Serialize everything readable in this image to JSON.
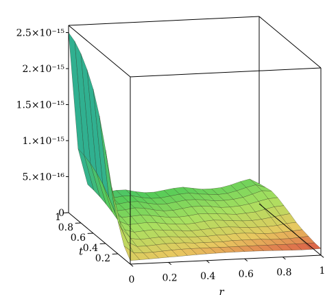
{
  "chart_data": {
    "type": "surface3d",
    "title": "",
    "xlabel": "r",
    "ylabel": "t",
    "zlabel": "",
    "x_ticks": [
      "0",
      "0.2",
      "0.4",
      "0.6",
      "0.8",
      "1"
    ],
    "y_ticks": [
      "0.2",
      "0.4",
      "0.6",
      "0.8",
      "1"
    ],
    "z_ticks": [
      {
        "value": 0,
        "label": "0"
      },
      {
        "value": 5e-16,
        "label": "5.×10⁻¹⁶"
      },
      {
        "value": 1e-15,
        "label": "1.×10⁻¹⁵"
      },
      {
        "value": 1.5e-15,
        "label": "1.5×10⁻¹⁵"
      },
      {
        "value": 2e-15,
        "label": "2.×10⁻¹⁵"
      },
      {
        "value": 2.5e-15,
        "label": "2.5×10⁻¹⁵"
      }
    ],
    "xlim": [
      0,
      1
    ],
    "ylim": [
      0,
      1
    ],
    "zlim": [
      0,
      2.6e-15
    ],
    "grid": false,
    "box": true,
    "colormap": [
      "#d94040",
      "#e8c860",
      "#a8e060",
      "#58cc58",
      "#30b090"
    ],
    "r_values": [
      0,
      0.05,
      0.1,
      0.15,
      0.2,
      0.25,
      0.3,
      0.35,
      0.4,
      0.45,
      0.5,
      0.55,
      0.6,
      0.65,
      0.7,
      0.75,
      0.8,
      0.85,
      0.9,
      0.95,
      1
    ],
    "t_values": [
      0,
      0.1,
      0.2,
      0.3,
      0.4,
      0.5,
      0.6,
      0.7,
      0.8,
      0.9,
      1
    ],
    "z_values": [
      [
        5e-17,
        5.4e-17,
        5.9e-17,
        6.5e-17,
        7.1e-17,
        7.6e-17,
        8.2e-17,
        8.8e-17,
        9.2e-17,
        9.6e-17,
        9.9e-17,
        1e-16,
        1e-16,
        1e-16,
        9.8e-17,
        9.5e-17,
        9.1e-17,
        8.8e-17,
        8.6e-17,
        8.7e-17,
        9.2e-17
      ],
      [
        1.8e-16,
        8e-17,
        7.2e-17,
        7.5e-17,
        8.4e-17,
        9.2e-17,
        9.8e-17,
        1e-16,
        1e-16,
        1e-16,
        9.9e-17,
        9.9e-17,
        1e-16,
        1e-16,
        1e-16,
        1e-16,
        9.9e-17,
        9.8e-17,
        9.7e-17,
        9.9e-17,
        1e-16
      ],
      [
        4.5e-16,
        1.6e-16,
        9e-17,
        9e-17,
        1e-16,
        1.1e-16,
        1.1e-16,
        1.1e-16,
        1e-16,
        1e-16,
        1e-16,
        1e-16,
        1.1e-16,
        1.1e-16,
        1.1e-16,
        1.1e-16,
        1e-16,
        1e-16,
        1e-16,
        1.1e-16,
        1.2e-16
      ],
      [
        8.5e-16,
        2.8e-16,
        1.3e-16,
        1.1e-16,
        1.2e-16,
        1.3e-16,
        1.3e-16,
        1.2e-16,
        1.1e-16,
        1.1e-16,
        1.1e-16,
        1.2e-16,
        1.2e-16,
        1.3e-16,
        1.3e-16,
        1.2e-16,
        1.1e-16,
        1.1e-16,
        1.2e-16,
        1.3e-16,
        1.4e-16
      ],
      [
        1.3e-15,
        4.2e-16,
        1.8e-16,
        1.4e-16,
        1.5e-16,
        1.6e-16,
        1.5e-16,
        1.4e-16,
        1.3e-16,
        1.2e-16,
        1.3e-16,
        1.4e-16,
        1.5e-16,
        1.5e-16,
        1.4e-16,
        1.3e-16,
        1.3e-16,
        1.3e-16,
        1.4e-16,
        1.6e-16,
        1.7e-16
      ],
      [
        1.7e-15,
        5.6e-16,
        2.3e-16,
        1.7e-16,
        1.8e-16,
        1.9e-16,
        1.8e-16,
        1.6e-16,
        1.5e-16,
        1.4e-16,
        1.5e-16,
        1.7e-16,
        1.8e-16,
        1.7e-16,
        1.6e-16,
        1.5e-16,
        1.5e-16,
        1.6e-16,
        1.8e-16,
        2e-16,
        2.2e-16
      ],
      [
        2e-15,
        6.8e-16,
        2.8e-16,
        2e-16,
        2.1e-16,
        2.2e-16,
        2.1e-16,
        1.9e-16,
        1.7e-16,
        1.7e-16,
        1.8e-16,
        2e-16,
        2e-16,
        1.9e-16,
        1.8e-16,
        1.7e-16,
        1.8e-16,
        1.9e-16,
        2.2e-16,
        2.5e-16,
        2.6e-16
      ],
      [
        2.2e-15,
        7.6e-16,
        3.2e-16,
        2.2e-16,
        2.3e-16,
        2.5e-16,
        2.4e-16,
        2.1e-16,
        1.9e-16,
        1.9e-16,
        2.1e-16,
        2.3e-16,
        2.3e-16,
        2.2e-16,
        2e-16,
        2e-16,
        2.1e-16,
        2.3e-16,
        2.6e-16,
        2.9e-16,
        3e-16
      ],
      [
        2.35e-15,
        8.2e-16,
        3.5e-16,
        2.4e-16,
        2.4e-16,
        2.6e-16,
        2.6e-16,
        2.3e-16,
        2.1e-16,
        2.1e-16,
        2.3e-16,
        2.5e-16,
        2.5e-16,
        2.4e-16,
        2.2e-16,
        2.2e-16,
        2.3e-16,
        2.5e-16,
        2.9e-16,
        3.3e-16,
        3.2e-16
      ],
      [
        2.45e-15,
        8.6e-16,
        3.7e-16,
        2.5e-16,
        2.5e-16,
        2.7e-16,
        2.7e-16,
        2.4e-16,
        2.2e-16,
        2.2e-16,
        2.4e-16,
        2.6e-16,
        2.7e-16,
        2.5e-16,
        2.4e-16,
        2.3e-16,
        2.4e-16,
        2.7e-16,
        3.1e-16,
        3.4e-16,
        3e-16
      ],
      [
        2.5e-15,
        8.8e-16,
        3.8e-16,
        2.6e-16,
        2.6e-16,
        2.8e-16,
        2.8e-16,
        2.5e-16,
        2.3e-16,
        2.3e-16,
        2.5e-16,
        2.7e-16,
        2.8e-16,
        2.6e-16,
        2.4e-16,
        2.4e-16,
        2.5e-16,
        2.8e-16,
        3.2e-16,
        3.5e-16,
        2.8e-16
      ]
    ]
  }
}
